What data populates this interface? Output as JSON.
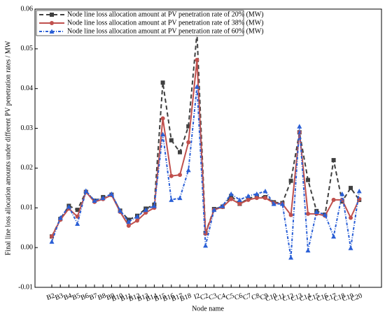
{
  "chart_data": {
    "type": "line",
    "x_label": "Node name",
    "y_label": "Final line loss allocation amounts under different PV penetration rates / MW",
    "categories": [
      "B2",
      "B3",
      "B4",
      "B5",
      "B6",
      "B7",
      "B8",
      "B9",
      "B10",
      "B11",
      "B12",
      "B13",
      "B14",
      "B15",
      "B16",
      "B17",
      "B18",
      "I2",
      "C2",
      "C3",
      "C4",
      "C5",
      "C6",
      "C7",
      "C8",
      "C9",
      "C10",
      "C11",
      "C12",
      "C13",
      "C14",
      "C15",
      "C16",
      "C17",
      "C18",
      "C19",
      "C20"
    ],
    "ylim": [
      -0.01,
      0.06
    ],
    "yticks": [
      -0.01,
      {
        "value": 0,
        "label": "0.00"
      },
      0.01,
      0.02,
      0.03,
      0.04,
      0.05,
      0.06
    ],
    "legend": "upper left",
    "series": [
      {
        "name": "Node line loss allocation amount at PV penetration rate of 20% (MW)",
        "color": "#404040",
        "marker": "square",
        "dash": "6,4",
        "values": [
          0.0028,
          0.0072,
          0.0105,
          0.0095,
          0.014,
          0.0118,
          0.0127,
          0.0133,
          0.0093,
          0.007,
          0.008,
          0.0098,
          0.0108,
          0.0415,
          0.027,
          0.024,
          0.0305,
          0.054,
          0.0037,
          0.0097,
          0.0103,
          0.013,
          0.011,
          0.0123,
          0.013,
          0.0127,
          0.0114,
          0.0112,
          0.0168,
          0.029,
          0.017,
          0.0092,
          0.0083,
          0.022,
          0.0116,
          0.015,
          0.012
        ]
      },
      {
        "name": "Node line loss allocation amount at PV penetration rate of 38% (MW)",
        "color": "#c0504d",
        "marker": "circle",
        "dash": "none",
        "values": [
          0.0028,
          0.007,
          0.0098,
          0.0078,
          0.014,
          0.0115,
          0.0122,
          0.0132,
          0.009,
          0.0055,
          0.0068,
          0.0088,
          0.01,
          0.0325,
          0.018,
          0.0183,
          0.0265,
          0.0472,
          0.0035,
          0.0095,
          0.0102,
          0.0122,
          0.011,
          0.012,
          0.0125,
          0.0125,
          0.0112,
          0.011,
          0.0082,
          0.029,
          0.0085,
          0.0085,
          0.008,
          0.012,
          0.012,
          0.0075,
          0.0122
        ]
      },
      {
        "name": "Node line loss allocation amount at PV penetration rate of 60% (MW)",
        "color": "#2a5fd6",
        "marker": "triangle",
        "dash": "4,2,1,2",
        "values": [
          0.0015,
          0.0075,
          0.0103,
          0.006,
          0.0143,
          0.0118,
          0.0125,
          0.0135,
          0.0093,
          0.0065,
          0.0078,
          0.0095,
          0.0105,
          0.0285,
          0.012,
          0.0125,
          0.0195,
          0.0405,
          0.0005,
          0.0095,
          0.0105,
          0.0135,
          0.012,
          0.013,
          0.0135,
          0.0142,
          0.011,
          0.011,
          -0.0025,
          0.0305,
          -0.0007,
          0.009,
          0.0083,
          0.0028,
          0.0135,
          -0.0001,
          0.0142
        ]
      }
    ]
  }
}
